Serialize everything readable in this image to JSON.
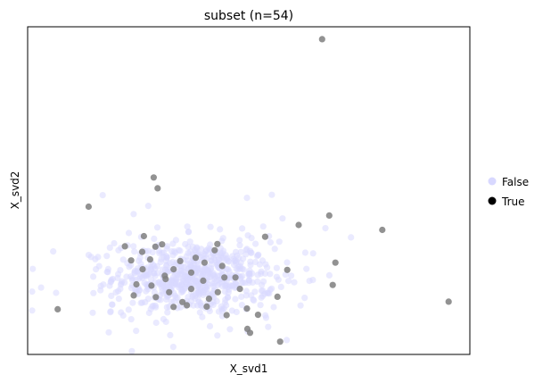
{
  "chart_data": {
    "type": "scatter",
    "title": "subset (n=54)",
    "xlabel": "X_svd1",
    "ylabel": "X_svd2",
    "xlim": [
      0,
      100
    ],
    "ylim": [
      0,
      100
    ],
    "grid": false,
    "ticks": false,
    "legend": {
      "placement": "right",
      "entries": [
        {
          "label": "False",
          "color": "#d8d8ff"
        },
        {
          "label": "True",
          "color": "#000000"
        }
      ]
    },
    "background_cloud": {
      "label": "False",
      "color": "#d8d8ff",
      "center": [
        37.5,
        23.5
      ],
      "spread": [
        9.0,
        5.5
      ],
      "count": 700
    },
    "series": [
      {
        "name": "True",
        "color": "#7f7f7f",
        "points": [
          [
            66.6,
            96.2
          ],
          [
            28.5,
            54.0
          ],
          [
            29.4,
            50.7
          ],
          [
            13.8,
            45.1
          ],
          [
            68.2,
            42.4
          ],
          [
            80.2,
            38.0
          ],
          [
            61.3,
            39.5
          ],
          [
            53.7,
            35.9
          ],
          [
            22.0,
            33.0
          ],
          [
            26.3,
            36.1
          ],
          [
            25.9,
            31.3
          ],
          [
            28.9,
            32.9
          ],
          [
            30.4,
            33.6
          ],
          [
            42.3,
            31.8
          ],
          [
            42.9,
            33.7
          ],
          [
            27.7,
            29.0
          ],
          [
            23.4,
            28.7
          ],
          [
            58.7,
            25.8
          ],
          [
            69.6,
            28.0
          ],
          [
            40.0,
            28.0
          ],
          [
            33.0,
            26.0
          ],
          [
            31.0,
            24.0
          ],
          [
            37.0,
            25.0
          ],
          [
            44.0,
            27.0
          ],
          [
            24.6,
            21.4
          ],
          [
            31.2,
            23.0
          ],
          [
            39.7,
            22.5
          ],
          [
            47.0,
            23.5
          ],
          [
            69.0,
            21.2
          ],
          [
            24.0,
            18.0
          ],
          [
            37.0,
            20.0
          ],
          [
            43.0,
            19.0
          ],
          [
            29.0,
            17.5
          ],
          [
            35.0,
            16.0
          ],
          [
            41.0,
            17.0
          ],
          [
            33.0,
            14.5
          ],
          [
            36.0,
            15.0
          ],
          [
            40.5,
            14.6
          ],
          [
            56.5,
            17.6
          ],
          [
            49.6,
            14.0
          ],
          [
            52.1,
            12.1
          ],
          [
            6.8,
            13.8
          ],
          [
            95.2,
            16.1
          ],
          [
            49.7,
            7.8
          ],
          [
            50.3,
            6.6
          ],
          [
            57.1,
            3.9
          ],
          [
            45.0,
            12.0
          ],
          [
            26.0,
            26.0
          ],
          [
            34.5,
            28.5
          ],
          [
            38.0,
            29.5
          ],
          [
            48.0,
            20.0
          ],
          [
            32.0,
            19.0
          ],
          [
            44.5,
            23.5
          ],
          [
            28.0,
            21.0
          ]
        ]
      }
    ]
  }
}
